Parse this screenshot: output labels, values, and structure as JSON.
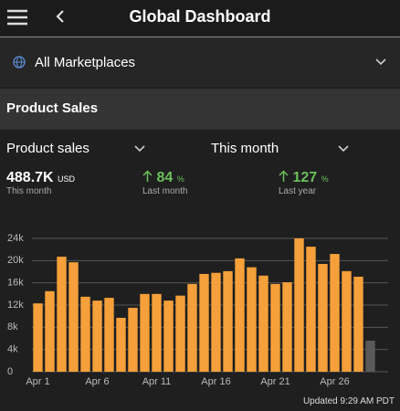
{
  "header": {
    "title": "Global Dashboard"
  },
  "marketplace": "All Marketplaces",
  "section": "Product Sales",
  "filters": [
    "Product sales",
    "This month"
  ],
  "metrics": [
    {
      "value": "488.7K",
      "unit": "USD",
      "label": "This month"
    },
    {
      "value": "84",
      "unit": "%",
      "label": "Last month"
    },
    {
      "value": "127",
      "unit": "%",
      "label": "Last year"
    }
  ],
  "chart_data": {
    "type": "bar",
    "categories": [
      "Apr 1",
      null,
      null,
      null,
      null,
      "Apr 6",
      null,
      null,
      null,
      null,
      "Apr 11",
      null,
      null,
      null,
      null,
      "Apr 16",
      null,
      null,
      null,
      null,
      "Apr 21",
      null,
      null,
      null,
      null,
      "Apr 26",
      null,
      null,
      null,
      null
    ],
    "values": [
      12300,
      14500,
      20700,
      19700,
      13500,
      12800,
      13300,
      9700,
      11500,
      14000,
      14000,
      12800,
      13700,
      15800,
      17600,
      17800,
      18100,
      20400,
      18800,
      17300,
      15800,
      16100,
      24000,
      22500,
      19400,
      21200,
      18100,
      17100,
      5600,
      null
    ],
    "colors": [
      "#f5a03a",
      "#f5a03a",
      "#f5a03a",
      "#f5a03a",
      "#f5a03a",
      "#f5a03a",
      "#f5a03a",
      "#f5a03a",
      "#f5a03a",
      "#f5a03a",
      "#f5a03a",
      "#f5a03a",
      "#f5a03a",
      "#f5a03a",
      "#f5a03a",
      "#f5a03a",
      "#f5a03a",
      "#f5a03a",
      "#f5a03a",
      "#f5a03a",
      "#f5a03a",
      "#f5a03a",
      "#f5a03a",
      "#f5a03a",
      "#f5a03a",
      "#f5a03a",
      "#f5a03a",
      "#f5a03a",
      "#5a5a5a",
      "#5a5a5a"
    ],
    "ylim": [
      0,
      24000
    ],
    "yticks": [
      {
        "value": 0,
        "label": "0"
      },
      {
        "value": 4000,
        "label": "4k"
      },
      {
        "value": 8000,
        "label": "8k"
      },
      {
        "value": 12000,
        "label": "12k"
      },
      {
        "value": 16000,
        "label": "16k"
      },
      {
        "value": 20000,
        "label": "20k"
      },
      {
        "value": 24000,
        "label": "24k"
      }
    ],
    "grid": true
  },
  "footer": "Updated 9:29 AM PDT"
}
